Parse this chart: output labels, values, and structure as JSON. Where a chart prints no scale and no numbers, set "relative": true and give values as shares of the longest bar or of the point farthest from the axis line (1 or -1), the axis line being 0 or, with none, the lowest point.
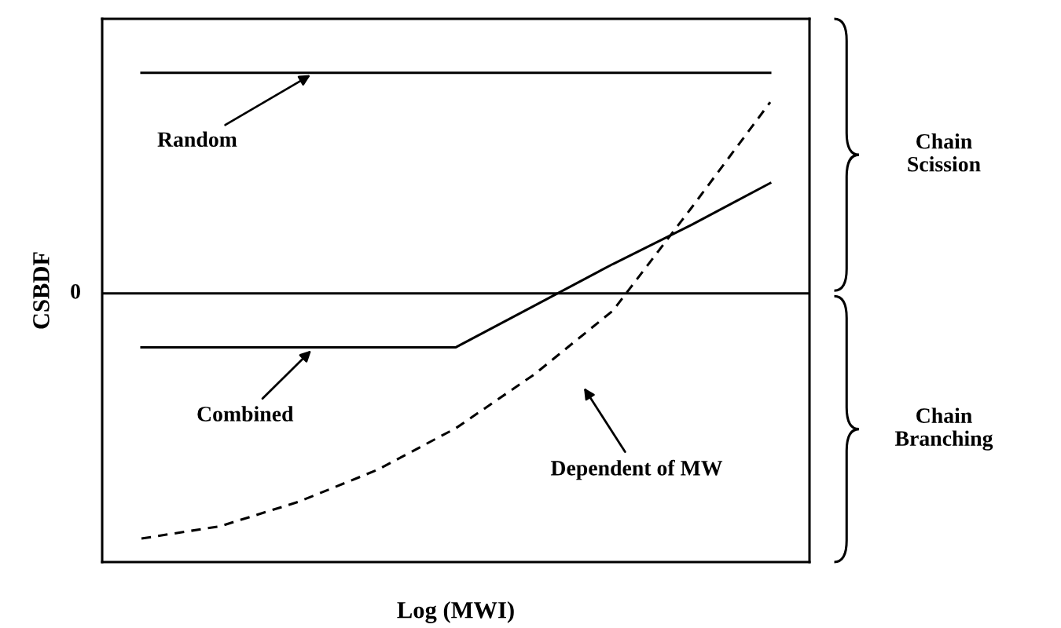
{
  "chart_data": {
    "type": "line",
    "relative": true,
    "xlabel": "Log (MWI)",
    "ylabel": "CSBDF",
    "categories": [
      null,
      null,
      null,
      null,
      null,
      null,
      null,
      null,
      null
    ],
    "series": [
      {
        "color": "#000000",
        "line_style": "solid",
        "values": [
          0.9,
          0.9,
          0.9,
          0.9,
          0.9,
          0.9,
          0.9,
          0.9,
          0.9
        ]
      },
      {
        "color": "#000000",
        "line_style": "solid",
        "values": [
          -0.22,
          -0.22,
          -0.22,
          -0.22,
          -0.22,
          -0.05,
          0.12,
          0.28,
          0.45
        ]
      },
      {
        "color": "#000000",
        "line_style": "dashed",
        "values": [
          -1,
          -0.95,
          -0.85,
          -0.72,
          -0.55,
          -0.33,
          -0.07,
          0.35,
          0.78
        ]
      }
    ],
    "annotations": [
      "Random",
      "Combined",
      "Dependent of MW",
      "0",
      "Chain Scission",
      "Chain Branching"
    ],
    "marker": "none"
  }
}
